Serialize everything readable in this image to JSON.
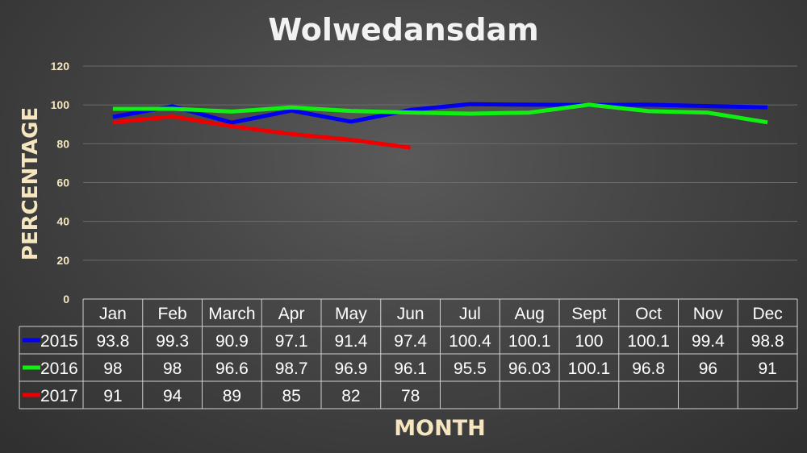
{
  "chart_data": {
    "type": "line",
    "title": "Wolwedansdam",
    "xlabel": "MONTH",
    "ylabel": "PERCENTAGE",
    "ylim": [
      0,
      120
    ],
    "yticks": [
      "0",
      "20",
      "40",
      "60",
      "80",
      "100",
      "120"
    ],
    "grid": true,
    "legend": "data-table",
    "categories": [
      "Jan",
      "Feb",
      "March",
      "Apr",
      "May",
      "Jun",
      "Jul",
      "Aug",
      "Sept",
      "Oct",
      "Nov",
      "Dec"
    ],
    "series": [
      {
        "name": "2015",
        "color": "#0000ee",
        "values": [
          93.8,
          99.3,
          90.9,
          97.1,
          91.4,
          97.4,
          100.4,
          100.1,
          100,
          100.1,
          99.4,
          98.8
        ],
        "labels": [
          "93.8",
          "99.3",
          "90.9",
          "97.1",
          "91.4",
          "97.4",
          "100.4",
          "100.1",
          "100",
          "100.1",
          "99.4",
          "98.8"
        ]
      },
      {
        "name": "2016",
        "color": "#11ee11",
        "values": [
          98,
          98,
          96.6,
          98.7,
          96.9,
          96.1,
          95.5,
          96.03,
          100.1,
          96.8,
          96,
          91
        ],
        "labels": [
          "98",
          "98",
          "96.6",
          "98.7",
          "96.9",
          "96.1",
          "95.5",
          "96.03",
          "100.1",
          "96.8",
          "96",
          "91"
        ]
      },
      {
        "name": "2017",
        "color": "#ee0000",
        "values": [
          91,
          94,
          89,
          85,
          82,
          78,
          null,
          null,
          null,
          null,
          null,
          null
        ],
        "labels": [
          "91",
          "94",
          "89",
          "85",
          "82",
          "78",
          "",
          "",
          "",
          "",
          "",
          ""
        ]
      }
    ]
  },
  "colors": {
    "text_title": "#f2f2f2",
    "text_labels": "#f6e6bf",
    "table_text": "#ffffff",
    "grid": "#6c6c6c"
  }
}
